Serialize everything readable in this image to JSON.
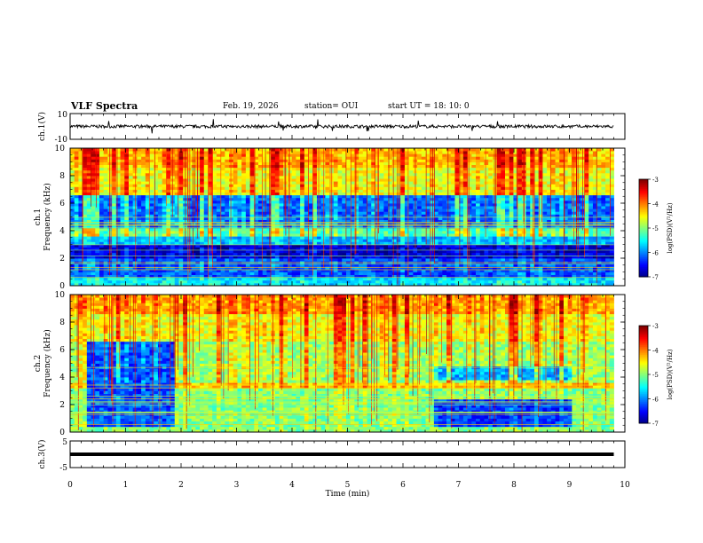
{
  "header": {
    "title": "VLF Spectra",
    "date": "Feb. 19, 2026",
    "station": "station= OUI",
    "start": "start  UT =   18: 10: 0"
  },
  "chart_data": [
    {
      "type": "line",
      "panel": "ch1-waveform",
      "ylabel": "ch.1(V)",
      "ylim": [
        -10,
        10
      ],
      "yticks": [
        "10",
        "-10"
      ],
      "x": [
        0,
        1,
        2,
        3,
        4,
        5,
        6,
        7,
        8,
        9,
        9.8
      ],
      "y": [
        0,
        0,
        0,
        0,
        0,
        0,
        0,
        0,
        0,
        0,
        0
      ],
      "noise_amplitude": 1.2
    },
    {
      "type": "heatmap",
      "panel": "ch1-spectrogram",
      "ylabel": "ch.1\nFrequency  (kHz)",
      "ylabel_line1": "ch.1",
      "ylabel_line2": "Frequency  (kHz)",
      "xlim": [
        0,
        10
      ],
      "ylim": [
        0,
        10
      ],
      "yticks": [
        "0",
        "2",
        "4",
        "6",
        "8",
        "10"
      ],
      "data_end_min": 9.8,
      "colorbar": {
        "label": "log(PSD)(V²/Hz)",
        "min": -7,
        "max": -3,
        "ticks": [
          "-3",
          "-4",
          "-5",
          "-6",
          "-7"
        ]
      },
      "bands": [
        {
          "f_from": 8.5,
          "f_to": 10,
          "level": -4.3
        },
        {
          "f_from": 6.5,
          "f_to": 8.5,
          "level": -4.6
        },
        {
          "f_from": 4.2,
          "f_to": 6.5,
          "level": -6.1
        },
        {
          "f_from": 3.6,
          "f_to": 4.2,
          "level": -5.2
        },
        {
          "f_from": 2.9,
          "f_to": 3.6,
          "level": -5.8
        },
        {
          "f_from": 2.0,
          "f_to": 2.9,
          "level": -6.7
        },
        {
          "f_from": 0.6,
          "f_to": 2.0,
          "level": -6.2
        },
        {
          "f_from": 0,
          "f_to": 0.6,
          "level": -5.6
        }
      ]
    },
    {
      "type": "heatmap",
      "panel": "ch2-spectrogram",
      "ylabel": "ch.2\nFrequency  (kHz)",
      "ylabel_line1": "ch.2",
      "ylabel_line2": "Frequency  (kHz)",
      "xlim": [
        0,
        10
      ],
      "ylim": [
        0,
        10
      ],
      "yticks": [
        "0",
        "2",
        "4",
        "6",
        "8",
        "10"
      ],
      "data_end_min": 9.8,
      "colorbar": {
        "label": "log(PSD)(V²/Hz)",
        "min": -7,
        "max": -3,
        "ticks": [
          "-3",
          "-4",
          "-5",
          "-6",
          "-7"
        ]
      },
      "bands": [
        {
          "f_from": 8.5,
          "f_to": 10,
          "level": -4.2
        },
        {
          "f_from": 6.5,
          "f_to": 8.5,
          "level": -4.6
        },
        {
          "f_from": 3.6,
          "f_to": 6.5,
          "level": -4.9
        },
        {
          "f_from": 3.2,
          "f_to": 3.6,
          "level": -4.3
        },
        {
          "f_from": 0,
          "f_to": 3.2,
          "level": -5.0
        }
      ],
      "quiet_regions": [
        {
          "t_from": 0.25,
          "t_to": 1.85,
          "f_from": 0.3,
          "f_to": 6.5,
          "level": -6.2
        },
        {
          "t_from": 6.5,
          "t_to": 9.0,
          "f_from": 0.3,
          "f_to": 2.3,
          "level": -6.3
        },
        {
          "t_from": 6.5,
          "t_to": 9.0,
          "f_from": 3.8,
          "f_to": 4.8,
          "level": -5.8
        }
      ]
    },
    {
      "type": "line",
      "panel": "ch3-waveform",
      "ylabel": "ch.3(V)",
      "ylim": [
        -5,
        5
      ],
      "yticks": [
        "5",
        "-5"
      ],
      "x": [
        0,
        9.8
      ],
      "y": [
        0,
        0
      ]
    }
  ],
  "xaxis": {
    "label": "Time  (min)",
    "ticks": [
      "0",
      "1",
      "2",
      "3",
      "4",
      "5",
      "6",
      "7",
      "8",
      "9",
      "10"
    ],
    "xlim": [
      0,
      10
    ]
  }
}
